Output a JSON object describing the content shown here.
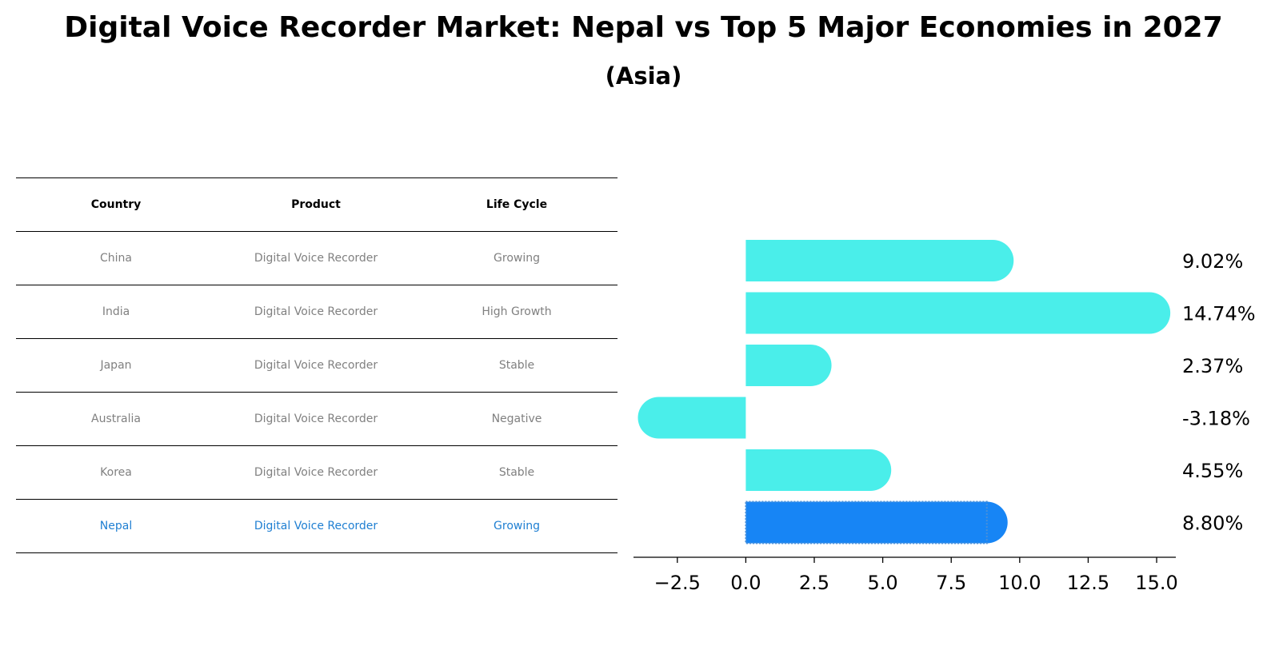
{
  "title": "Digital Voice Recorder Market: Nepal vs Top 5 Major Economies in 2027",
  "subtitle": "(Asia)",
  "table": {
    "headers": [
      "Country",
      "Product",
      "Life Cycle"
    ],
    "rows": [
      [
        "China",
        "Digital Voice Recorder",
        "Growing"
      ],
      [
        "India",
        "Digital Voice Recorder",
        "High Growth"
      ],
      [
        "Japan",
        "Digital Voice Recorder",
        "Stable"
      ],
      [
        "Australia",
        "Digital Voice Recorder",
        "Negative"
      ],
      [
        "Korea",
        "Digital Voice Recorder",
        "Stable"
      ],
      [
        "Nepal",
        "Digital Voice Recorder",
        "Growing"
      ]
    ]
  },
  "chart_data": {
    "type": "bar",
    "orientation": "horizontal",
    "categories": [
      "China",
      "India",
      "Japan",
      "Australia",
      "Korea",
      "Nepal"
    ],
    "values": [
      9.02,
      14.74,
      2.37,
      -3.18,
      4.55,
      8.8
    ],
    "labels": [
      "9.02%",
      "14.74%",
      "2.37%",
      "-3.18%",
      "4.55%",
      "8.80%"
    ],
    "xlim": [
      -4.1,
      15.7
    ],
    "xticks": [
      -2.5,
      0.0,
      2.5,
      5.0,
      7.5,
      10.0,
      12.5,
      15.0
    ],
    "xtick_labels": [
      "−2.5",
      "0.0",
      "2.5",
      "5.0",
      "7.5",
      "10.0",
      "12.5",
      "15.0"
    ],
    "colors": {
      "default": "#4aeeea",
      "highlight": "#1785f5"
    },
    "highlight": "Nepal",
    "grid": false
  }
}
